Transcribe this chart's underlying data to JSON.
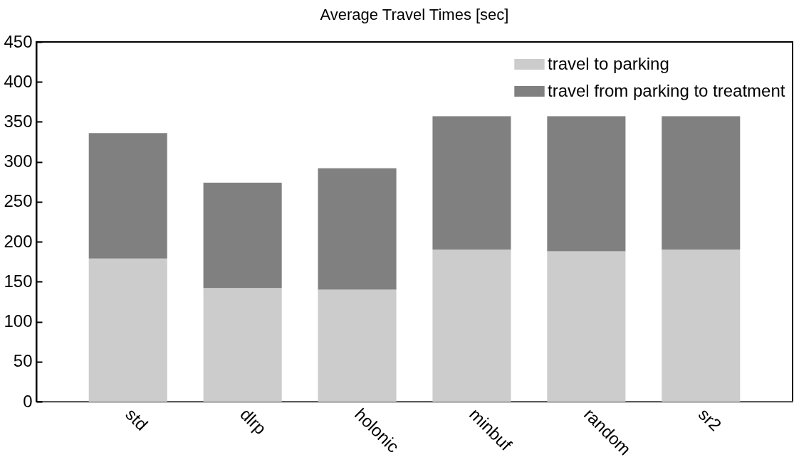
{
  "chart_data": {
    "type": "bar",
    "title": "Average Travel Times [sec]",
    "stacked": true,
    "legend": "top right",
    "grid": false,
    "categories": [
      "std",
      "dlrp",
      "holonic",
      "minbuf",
      "random",
      "sr2"
    ],
    "series": [
      {
        "name": "travel to parking",
        "color": "#cccccc",
        "values": [
          179,
          142,
          140,
          190,
          188,
          190
        ]
      },
      {
        "name": "travel from parking to treatment",
        "color": "#808080",
        "values": [
          157,
          132,
          152,
          167,
          169,
          167
        ]
      }
    ],
    "ylim": [
      0,
      450
    ],
    "yticks": [
      0,
      50,
      100,
      150,
      200,
      250,
      300,
      350,
      400,
      450
    ]
  }
}
